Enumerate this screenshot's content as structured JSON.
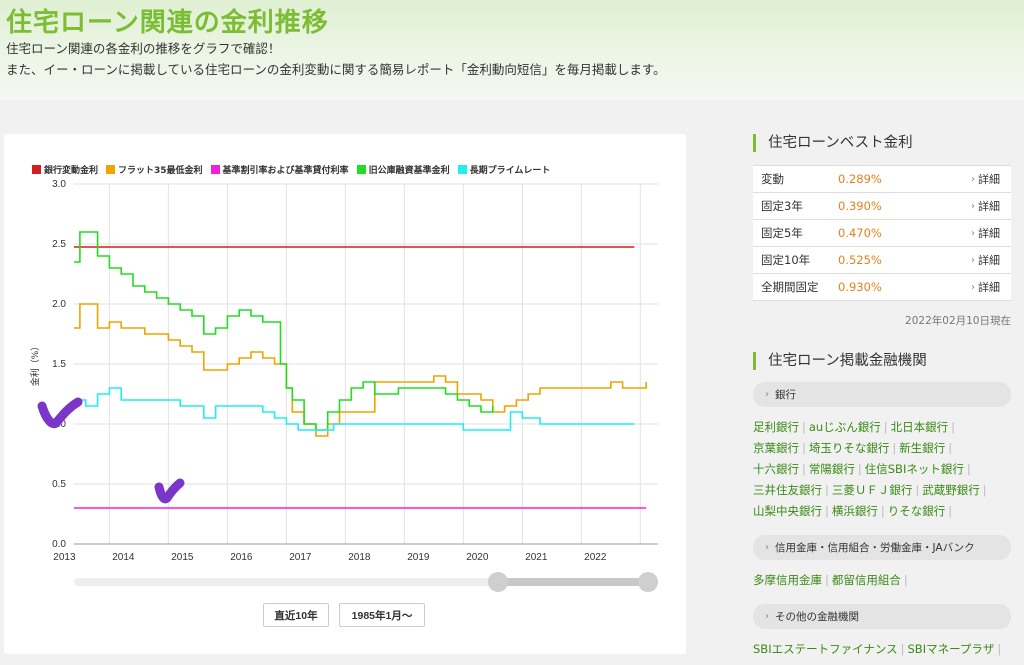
{
  "page": {
    "title": "住宅ローン関連の金利推移",
    "intro_line1": "住宅ローン関連の各金利の推移をグラフで確認！",
    "intro_line2": "また、イー・ローンに掲載している住宅ローンの金利変動に関する簡易レポート「金利動向短信」を毎月掲載します。"
  },
  "chart_data": {
    "type": "line",
    "ylabel": "金利（%）",
    "ylim": [
      0,
      3.0
    ],
    "yticks": [
      "0.0",
      "0.5",
      "1.0",
      "1.5",
      "2.0",
      "2.5",
      "3.0"
    ],
    "xlim": [
      2012.4,
      2022.3
    ],
    "xticks": [
      "2013",
      "2014",
      "2015",
      "2016",
      "2017",
      "2018",
      "2019",
      "2020",
      "2021",
      "2022"
    ],
    "grid": true,
    "legend_position": "top",
    "series": [
      {
        "name": "銀行変動金利",
        "color": "#d81b1b",
        "x": [
          2012.4,
          2021.9
        ],
        "y": [
          2.475,
          2.475
        ]
      },
      {
        "name": "フラット35最低金利",
        "color": "#f0a400",
        "x": [
          2012.4,
          2012.5,
          2012.8,
          2013.0,
          2013.2,
          2013.4,
          2013.6,
          2013.8,
          2014.0,
          2014.2,
          2014.4,
          2014.6,
          2014.8,
          2015.0,
          2015.2,
          2015.4,
          2015.6,
          2015.8,
          2015.9,
          2016.0,
          2016.1,
          2016.3,
          2016.5,
          2016.7,
          2016.9,
          2017.1,
          2017.3,
          2017.5,
          2017.7,
          2017.9,
          2018.1,
          2018.3,
          2018.5,
          2018.7,
          2018.9,
          2019.1,
          2019.3,
          2019.5,
          2019.7,
          2019.9,
          2020.1,
          2020.3,
          2020.5,
          2020.7,
          2020.9,
          2021.1,
          2021.3,
          2021.5,
          2021.7,
          2021.9,
          2022.1
        ],
        "y": [
          1.8,
          2.0,
          1.8,
          1.85,
          1.8,
          1.8,
          1.75,
          1.75,
          1.7,
          1.65,
          1.6,
          1.45,
          1.45,
          1.5,
          1.55,
          1.6,
          1.55,
          1.5,
          1.5,
          1.3,
          1.1,
          1.0,
          0.9,
          1.0,
          1.1,
          1.1,
          1.1,
          1.35,
          1.35,
          1.35,
          1.35,
          1.35,
          1.4,
          1.35,
          1.25,
          1.25,
          1.2,
          1.1,
          1.15,
          1.2,
          1.25,
          1.3,
          1.3,
          1.3,
          1.3,
          1.3,
          1.3,
          1.35,
          1.3,
          1.3,
          1.35
        ]
      },
      {
        "name": "基準割引率および基準貸付利率",
        "color": "#f020e0",
        "x": [
          2012.4,
          2022.1
        ],
        "y": [
          0.3,
          0.3
        ]
      },
      {
        "name": "旧公庫融資基準金利",
        "color": "#22dd22",
        "x": [
          2012.4,
          2012.5,
          2012.8,
          2013.0,
          2013.2,
          2013.4,
          2013.6,
          2013.8,
          2014.0,
          2014.2,
          2014.4,
          2014.6,
          2014.8,
          2015.0,
          2015.2,
          2015.4,
          2015.6,
          2015.8,
          2015.9,
          2016.0,
          2016.1,
          2016.3,
          2016.5,
          2016.7,
          2016.9,
          2017.1,
          2017.3,
          2017.5,
          2017.7,
          2017.9,
          2018.1,
          2018.3,
          2018.5,
          2018.7,
          2018.9,
          2019.1,
          2019.3,
          2019.5
        ],
        "y": [
          2.35,
          2.6,
          2.4,
          2.3,
          2.25,
          2.15,
          2.1,
          2.05,
          2.0,
          1.95,
          1.9,
          1.75,
          1.8,
          1.9,
          1.95,
          1.9,
          1.85,
          1.85,
          1.5,
          1.3,
          1.2,
          1.0,
          0.95,
          1.1,
          1.2,
          1.3,
          1.35,
          1.25,
          1.25,
          1.3,
          1.3,
          1.3,
          1.3,
          1.25,
          1.2,
          1.15,
          1.1,
          1.15
        ]
      },
      {
        "name": "長期プライムレート",
        "color": "#22eeee",
        "x": [
          2012.4,
          2012.6,
          2012.8,
          2013.0,
          2013.2,
          2013.4,
          2013.6,
          2013.8,
          2014.0,
          2014.2,
          2014.4,
          2014.6,
          2014.8,
          2015.0,
          2015.2,
          2015.4,
          2015.6,
          2015.8,
          2016.0,
          2016.2,
          2016.4,
          2016.6,
          2016.8,
          2017.0,
          2017.5,
          2018.0,
          2018.5,
          2019.0,
          2019.5,
          2019.8,
          2020.0,
          2020.3,
          2020.6,
          2021.0,
          2021.5,
          2021.9
        ],
        "y": [
          1.2,
          1.15,
          1.25,
          1.3,
          1.2,
          1.2,
          1.2,
          1.2,
          1.2,
          1.15,
          1.15,
          1.05,
          1.15,
          1.15,
          1.15,
          1.15,
          1.1,
          1.05,
          1.0,
          0.95,
          0.95,
          0.95,
          1.0,
          1.0,
          1.0,
          1.0,
          1.0,
          0.95,
          0.95,
          1.1,
          1.05,
          1.0,
          1.0,
          1.0,
          1.0,
          1.0
        ]
      }
    ]
  },
  "range_buttons": {
    "recent10": "直近10年",
    "since1985": "1985年1月～"
  },
  "best_rates": {
    "heading": "住宅ローンベスト金利",
    "link_label": "詳細",
    "rows": [
      {
        "name": "変動",
        "value": "0.289%"
      },
      {
        "name": "固定3年",
        "value": "0.390%"
      },
      {
        "name": "固定5年",
        "value": "0.470%"
      },
      {
        "name": "固定10年",
        "value": "0.525%"
      },
      {
        "name": "全期間固定",
        "value": "0.930%"
      }
    ],
    "as_of": "2022年02月10日現在"
  },
  "institutions": {
    "heading": "住宅ローン掲載金融機関",
    "categories": [
      {
        "label": "銀行",
        "lines": [
          [
            "足利銀行",
            "auじぶん銀行",
            "北日本銀行"
          ],
          [
            "京葉銀行",
            "埼玉りそな銀行",
            "新生銀行"
          ],
          [
            "十六銀行",
            "常陽銀行",
            "住信SBIネット銀行"
          ],
          [
            "三井住友銀行",
            "三菱ＵＦＪ銀行",
            "武蔵野銀行"
          ],
          [
            "山梨中央銀行",
            "横浜銀行",
            "りそな銀行"
          ]
        ]
      },
      {
        "label": "信用金庫・信用組合・労働金庫・JAバンク",
        "lines": [
          [
            "多摩信用金庫",
            "都留信用組合"
          ]
        ]
      },
      {
        "label": "その他の金融機関",
        "lines": [
          [
            "SBIエステートファイナンス",
            "SBIマネープラザ"
          ]
        ]
      }
    ]
  }
}
